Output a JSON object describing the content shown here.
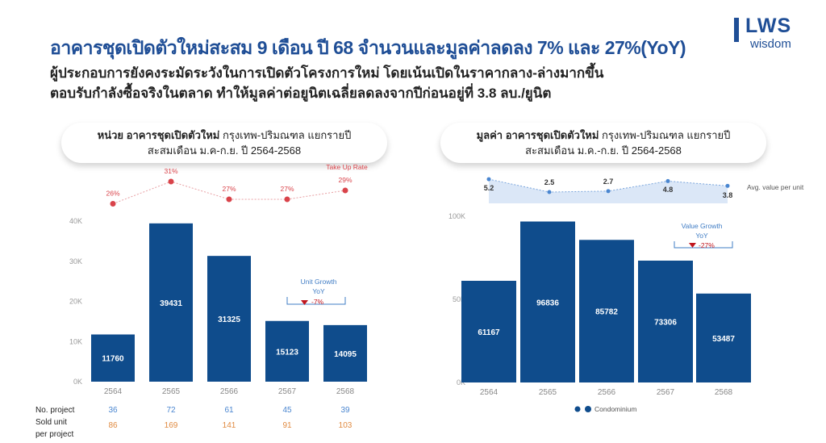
{
  "header": {
    "title": "อาคารชุดเปิดตัวใหม่สะสม 9 เดือน ปี 68 จำนวนและมูลค่าลดลง 7% และ 27%(YoY)",
    "subtitle1": "ผู้ประกอบการยังคงระมัดระวังในการเปิดตัวโครงการใหม่ โดยเน้นเปิดในราคากลาง-ล่างมากขึ้น",
    "subtitle2": "ตอบรับกำลังซื้อจริงในตลาด ทำให้มูลค่าต่อยูนิตเฉลี่ยลดลงจากปีก่อนอยู่ที่ 3.8 ลบ./ยูนิต"
  },
  "logo": {
    "text": "LWS",
    "sub": "wisdom"
  },
  "colors": {
    "bar": "#0f4c8c",
    "title": "#1f4e96",
    "takeup": "#d9434a",
    "avg": "#4a86d0",
    "area": "#dbe7f7",
    "project": "#4a86d0",
    "sold": "#e08a40"
  },
  "left_card": {
    "title_bold": "หน่วย อาคารชุดเปิดตัวใหม่",
    "title_rest": " กรุงเทพ-ปริมณฑล แยกรายปี",
    "subtitle": "สะสมเดือน ม.ค-ก.ย. ปี 2564-2568"
  },
  "right_card": {
    "title_bold": "มูลค่า อาคารชุดเปิดตัวใหม่",
    "title_rest": " กรุงเทพ-ปริมณฑล แยกรายปี",
    "subtitle": "สะสมเดือน ม.ค.-ก.ย. ปี 2564-2568"
  },
  "chart_data": [
    {
      "type": "bar",
      "title": "หน่วย อาคารชุดเปิดตัวใหม่",
      "categories": [
        "2564",
        "2565",
        "2566",
        "2567",
        "2568"
      ],
      "values": [
        11760,
        39431,
        31325,
        15123,
        14095
      ],
      "ylim": [
        0,
        40000
      ],
      "yticks": [
        "0K",
        "10K",
        "20K",
        "30K",
        "40K"
      ],
      "overlay": {
        "name": "Take Up Rate",
        "labels": [
          "26%",
          "31%",
          "27%",
          "27%",
          "29%"
        ],
        "values": [
          26,
          31,
          27,
          27,
          29
        ]
      },
      "annotation": {
        "line1": "Unit Growth",
        "line2": "YoY",
        "value": "-7%"
      },
      "table": {
        "row1_label": "No. project",
        "row1": [
          "36",
          "72",
          "61",
          "45",
          "39"
        ],
        "row2_label1": "Sold unit",
        "row2_label2": "per project",
        "row2": [
          "86",
          "169",
          "141",
          "91",
          "103"
        ]
      }
    },
    {
      "type": "bar",
      "title": "มูลค่า อาคารชุดเปิดตัวใหม่",
      "categories": [
        "2564",
        "2565",
        "2566",
        "2567",
        "2568"
      ],
      "values": [
        61167,
        96836,
        85782,
        73306,
        53487
      ],
      "ylim": [
        0,
        100000
      ],
      "yticks": [
        "0K",
        "50K",
        "100K"
      ],
      "overlay": {
        "name": "Avg. value per unit",
        "labels": [
          "5.2",
          "2.5",
          "2.7",
          "4.8",
          "3.8"
        ],
        "values": [
          5.2,
          2.5,
          2.7,
          4.8,
          3.8
        ]
      },
      "annotation": {
        "line1": "Value Growth",
        "line2": "YoY",
        "value": "-27%"
      },
      "legend": "Condominium"
    }
  ]
}
